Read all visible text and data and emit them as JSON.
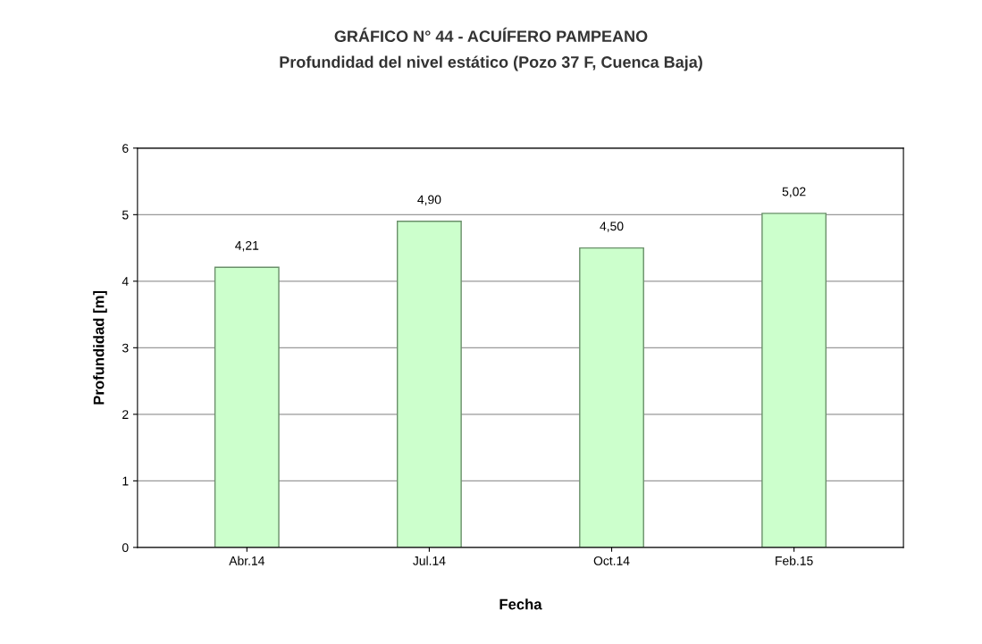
{
  "chart_data": {
    "type": "bar",
    "title": "GRÁFICO N° 44 - ACUÍFERO PAMPEANO",
    "subtitle": "Profundidad del nivel estático (Pozo 37 F, Cuenca Baja)",
    "xlabel": "Fecha",
    "ylabel": "Profundidad [m]",
    "categories": [
      "Abr.14",
      "Jul.14",
      "Oct.14",
      "Feb.15"
    ],
    "values": [
      4.21,
      4.9,
      4.5,
      5.02
    ],
    "value_labels": [
      "4,21",
      "4,90",
      "4,50",
      "5,02"
    ],
    "color": "#ccffcc",
    "ylim": [
      0,
      6
    ],
    "yticks": [
      0,
      1,
      2,
      3,
      4,
      5,
      6
    ],
    "grid": "y",
    "legend": false
  }
}
